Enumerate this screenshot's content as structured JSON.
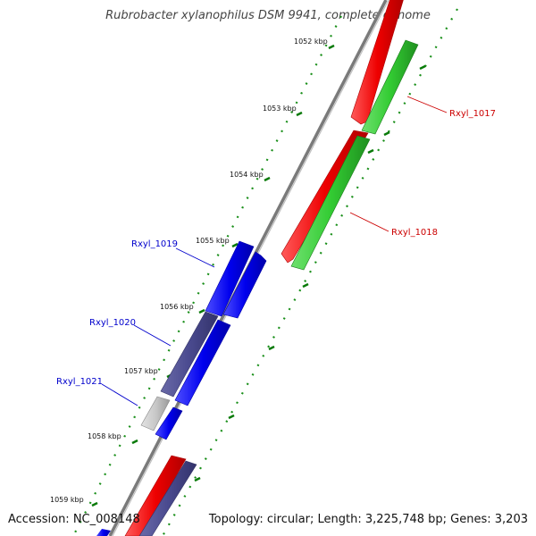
{
  "title": "Rubrobacter xylanophilus DSM 9941, complete genome",
  "footer": {
    "accession": "Accession: NC_008148",
    "summary": "Topology: circular; Length: 3,225,748 bp; Genes: 3,203"
  },
  "ticks": [
    "1052 kbp",
    "1053 kbp",
    "1054 kbp",
    "1055 kbp",
    "1056 kbp",
    "1057 kbp",
    "1058 kbp",
    "1059 kbp"
  ],
  "gene_labels": [
    {
      "name": "Rxyl_1017",
      "color": "#cc0000"
    },
    {
      "name": "Rxyl_1018",
      "color": "#cc0000"
    },
    {
      "name": "Rxyl_1019",
      "color": "#0000cc"
    },
    {
      "name": "Rxyl_1020",
      "color": "#0000cc"
    },
    {
      "name": "Rxyl_1021",
      "color": "#0000cc"
    }
  ],
  "colors": {
    "red_gene": "#ff0000",
    "green_gene": "#33cc33",
    "blue_gene": "#0000ff",
    "purple_gene": "#4a4a8f",
    "gray_gene": "#c8c8c8",
    "backbone": "#888888",
    "dotted_rings": "#1a8f1a"
  }
}
